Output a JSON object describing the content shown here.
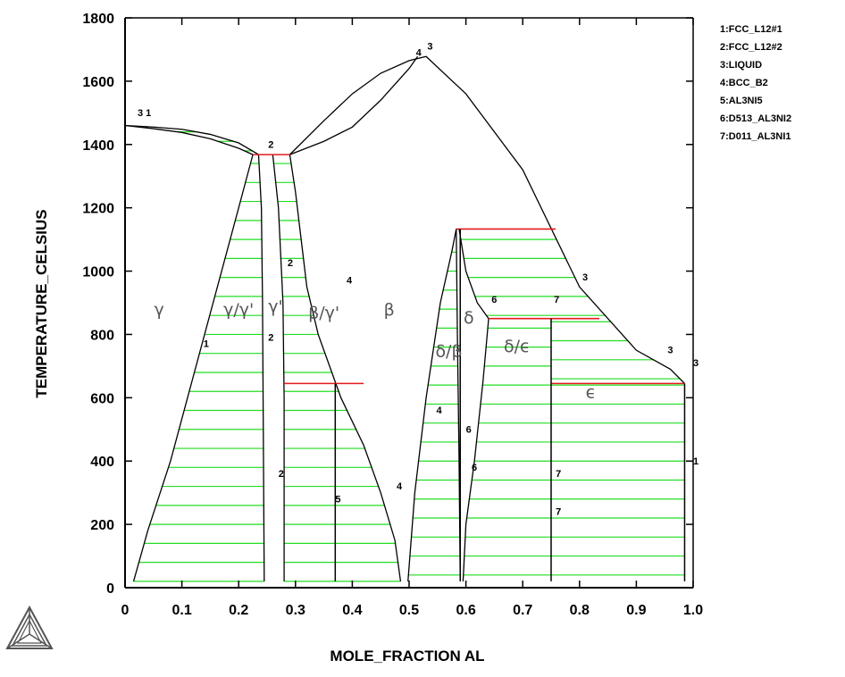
{
  "chart_data": {
    "type": "phase-diagram",
    "xlabel": "MOLE_FRACTION AL",
    "ylabel": "TEMPERATURE_CELSIUS",
    "xlim": [
      0,
      1.0
    ],
    "ylim": [
      0,
      1800
    ],
    "x_ticks": [
      "0",
      "0.1",
      "0.2",
      "0.3",
      "0.4",
      "0.5",
      "0.6",
      "0.7",
      "0.8",
      "0.9",
      "1.0"
    ],
    "y_ticks": [
      "0",
      "200",
      "400",
      "600",
      "800",
      "1000",
      "1200",
      "1400",
      "1600",
      "1800"
    ],
    "legend": [
      "1:FCC_L12#1",
      "2:FCC_L12#2",
      "3:LIQUID",
      "4:BCC_B2",
      "5:AL3NI5",
      "6:D513_AL3NI2",
      "7:D011_AL3NI1"
    ],
    "phase_labels": [
      {
        "text": "γ",
        "x": 0.06,
        "y": 860
      },
      {
        "text": "γ/γ'",
        "x": 0.2,
        "y": 860
      },
      {
        "text": "γ'",
        "x": 0.265,
        "y": 870
      },
      {
        "text": "β/γ'",
        "x": 0.35,
        "y": 850
      },
      {
        "text": "β",
        "x": 0.465,
        "y": 860
      },
      {
        "text": "δ",
        "x": 0.605,
        "y": 835
      },
      {
        "text": "δ/β",
        "x": 0.57,
        "y": 730
      },
      {
        "text": "δ/ϵ",
        "x": 0.69,
        "y": 745
      },
      {
        "text": "ϵ",
        "x": 0.82,
        "y": 600
      }
    ],
    "line_labels": [
      {
        "text": "3 1",
        "x": 0.022,
        "y": 1490
      },
      {
        "text": "2",
        "x": 0.252,
        "y": 1390
      },
      {
        "text": "4",
        "x": 0.512,
        "y": 1680
      },
      {
        "text": "3",
        "x": 0.532,
        "y": 1700
      },
      {
        "text": "2",
        "x": 0.286,
        "y": 1015
      },
      {
        "text": "4",
        "x": 0.39,
        "y": 960
      },
      {
        "text": "1",
        "x": 0.138,
        "y": 760
      },
      {
        "text": "2",
        "x": 0.252,
        "y": 780
      },
      {
        "text": "2",
        "x": 0.27,
        "y": 350
      },
      {
        "text": "5",
        "x": 0.37,
        "y": 270
      },
      {
        "text": "4",
        "x": 0.478,
        "y": 310
      },
      {
        "text": "4",
        "x": 0.548,
        "y": 550
      },
      {
        "text": "6",
        "x": 0.6,
        "y": 490
      },
      {
        "text": "6",
        "x": 0.61,
        "y": 370
      },
      {
        "text": "6",
        "x": 0.645,
        "y": 900
      },
      {
        "text": "7",
        "x": 0.755,
        "y": 900
      },
      {
        "text": "7",
        "x": 0.758,
        "y": 350
      },
      {
        "text": "7",
        "x": 0.758,
        "y": 230
      },
      {
        "text": "3",
        "x": 0.805,
        "y": 970
      },
      {
        "text": "3",
        "x": 0.955,
        "y": 740
      },
      {
        "text": "3",
        "x": 1.0,
        "y": 700
      },
      {
        "text": "1",
        "x": 1.0,
        "y": 390
      }
    ],
    "three_phase_lines": [
      {
        "x": [
          0.225,
          0.29
        ],
        "y": 1368
      },
      {
        "x": [
          0.583,
          0.758
        ],
        "y": 1133
      },
      {
        "x": [
          0.64,
          0.835
        ],
        "y": 850
      },
      {
        "x": [
          0.28,
          0.42
        ],
        "y": 645
      },
      {
        "x": [
          0.75,
          0.985
        ],
        "y": 645
      }
    ],
    "phase_boundaries": [
      {
        "name": "liquidus-left",
        "x": [
          0.0,
          0.05,
          0.1,
          0.15,
          0.2,
          0.235
        ],
        "y": [
          1460,
          1455,
          1448,
          1432,
          1405,
          1368
        ]
      },
      {
        "name": "solidus-left",
        "x": [
          0.0,
          0.05,
          0.1,
          0.15,
          0.2,
          0.225
        ],
        "y": [
          1460,
          1450,
          1438,
          1418,
          1388,
          1368
        ]
      },
      {
        "name": "liquidus-middle",
        "x": [
          0.29,
          0.35,
          0.4,
          0.45,
          0.5,
          0.53,
          0.6,
          0.7,
          0.8,
          0.9,
          0.96,
          0.985
        ],
        "y": [
          1368,
          1475,
          1560,
          1625,
          1665,
          1678,
          1560,
          1320,
          950,
          750,
          690,
          645
        ]
      },
      {
        "name": "solidus-middle",
        "x": [
          0.29,
          0.35,
          0.4,
          0.45,
          0.5,
          0.515
        ],
        "y": [
          1368,
          1410,
          1455,
          1540,
          1640,
          1678
        ]
      },
      {
        "name": "beta-left",
        "x": [
          0.29,
          0.3,
          0.31,
          0.32,
          0.34,
          0.38,
          0.42,
          0.45,
          0.475,
          0.485
        ],
        "y": [
          1368,
          1250,
          1100,
          950,
          800,
          600,
          450,
          300,
          150,
          20
        ]
      },
      {
        "name": "gamma-prime-right",
        "x": [
          0.26,
          0.27,
          0.278,
          0.28,
          0.28
        ],
        "y": [
          1368,
          1200,
          900,
          600,
          20
        ]
      },
      {
        "name": "gamma-prime-left",
        "x": [
          0.235,
          0.24,
          0.242,
          0.243,
          0.245
        ],
        "y": [
          1368,
          1200,
          900,
          600,
          20
        ]
      },
      {
        "name": "gamma-solvus",
        "x": [
          0.225,
          0.2,
          0.17,
          0.14,
          0.11,
          0.08,
          0.04,
          0.015
        ],
        "y": [
          1368,
          1200,
          1000,
          800,
          600,
          400,
          180,
          20
        ]
      },
      {
        "name": "beta-right-delta",
        "x": [
          0.498,
          0.51,
          0.53,
          0.555,
          0.575,
          0.583
        ],
        "y": [
          20,
          300,
          600,
          900,
          1060,
          1133
        ]
      },
      {
        "name": "delta-left",
        "x": [
          0.583,
          0.585,
          0.588,
          0.59
        ],
        "y": [
          1133,
          800,
          400,
          20
        ]
      },
      {
        "name": "delta-right",
        "x": [
          0.588,
          0.6,
          0.62,
          0.64
        ],
        "y": [
          1133,
          1000,
          900,
          850
        ]
      },
      {
        "name": "delta-eps-left",
        "x": [
          0.64,
          0.63,
          0.615,
          0.6,
          0.595
        ],
        "y": [
          850,
          650,
          400,
          200,
          20
        ]
      }
    ],
    "verticals": [
      {
        "x": 0.37,
        "y": [
          20,
          645
        ]
      },
      {
        "x": 0.59,
        "y": [
          20,
          1133
        ]
      },
      {
        "x": 0.75,
        "y": [
          20,
          850
        ]
      },
      {
        "x": 0.985,
        "y": [
          20,
          645
        ]
      }
    ]
  }
}
